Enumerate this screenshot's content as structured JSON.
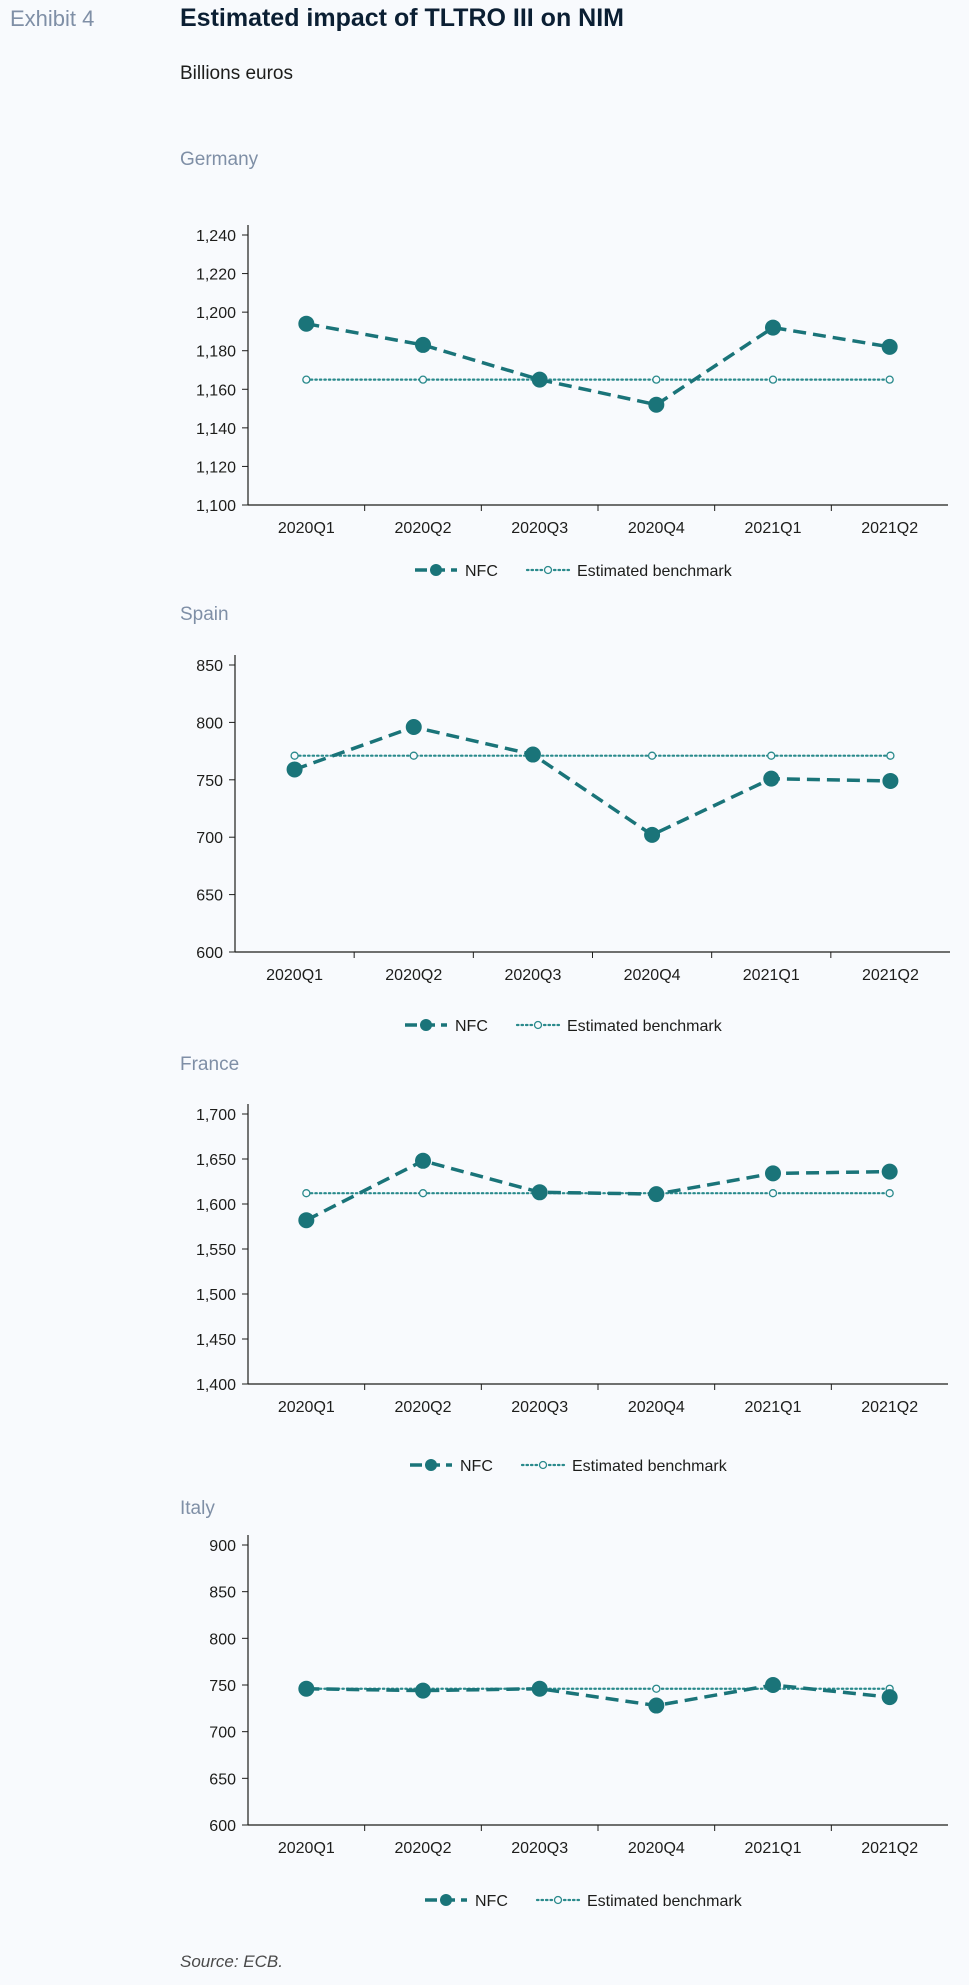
{
  "header": {
    "exhibit": "Exhibit 4",
    "title": "Estimated impact of TLTRO III on NIM",
    "subtitle": "Billions euros"
  },
  "footer": {
    "source": "Source: ECB."
  },
  "colors": {
    "nfc": "#1a7479",
    "benchmark": "#2a8a8c",
    "axis": "#1d1d1b"
  },
  "legend": {
    "nfc": "NFC",
    "benchmark": "Estimated benchmark"
  },
  "chart_data": [
    {
      "type": "line",
      "title": "Germany",
      "categories": [
        "2020Q1",
        "2020Q2",
        "2020Q3",
        "2020Q4",
        "2021Q1",
        "2021Q2"
      ],
      "series": [
        {
          "name": "NFC",
          "values": [
            1194,
            1183,
            1165,
            1152,
            1192,
            1182
          ]
        },
        {
          "name": "Estimated benchmark",
          "values": [
            1165,
            1165,
            1165,
            1165,
            1165,
            1165
          ]
        }
      ],
      "yticks": [
        "1,100",
        "1,120",
        "1,140",
        "1,160",
        "1,180",
        "1,200",
        "1,220",
        "1,240"
      ],
      "ylim": [
        1100,
        1240
      ],
      "legend_position": "bottom"
    },
    {
      "type": "line",
      "title": "Spain",
      "categories": [
        "2020Q1",
        "2020Q2",
        "2020Q3",
        "2020Q4",
        "2021Q1",
        "2021Q2"
      ],
      "series": [
        {
          "name": "NFC",
          "values": [
            759,
            796,
            772,
            702,
            751,
            749
          ]
        },
        {
          "name": "Estimated benchmark",
          "values": [
            771,
            771,
            771,
            771,
            771,
            771
          ]
        }
      ],
      "yticks": [
        "600",
        "650",
        "700",
        "750",
        "800",
        "850"
      ],
      "ylim": [
        600,
        850
      ],
      "legend_position": "bottom"
    },
    {
      "type": "line",
      "title": "France",
      "categories": [
        "2020Q1",
        "2020Q2",
        "2020Q3",
        "2020Q4",
        "2021Q1",
        "2021Q2"
      ],
      "series": [
        {
          "name": "NFC",
          "values": [
            1582,
            1648,
            1613,
            1611,
            1634,
            1636
          ]
        },
        {
          "name": "Estimated benchmark",
          "values": [
            1612,
            1612,
            1612,
            1612,
            1612,
            1612
          ]
        }
      ],
      "yticks": [
        "1,400",
        "1,450",
        "1,500",
        "1,550",
        "1,600",
        "1,650",
        "1,700"
      ],
      "ylim": [
        1400,
        1700
      ],
      "legend_position": "bottom"
    },
    {
      "type": "line",
      "title": "Italy",
      "categories": [
        "2020Q1",
        "2020Q2",
        "2020Q3",
        "2020Q4",
        "2021Q1",
        "2021Q2"
      ],
      "series": [
        {
          "name": "NFC",
          "values": [
            746,
            744,
            746,
            728,
            750,
            737
          ]
        },
        {
          "name": "Estimated benchmark",
          "values": [
            746,
            746,
            746,
            746,
            746,
            746
          ]
        }
      ],
      "yticks": [
        "600",
        "650",
        "700",
        "750",
        "800",
        "850",
        "900"
      ],
      "ylim": [
        600,
        900
      ],
      "legend_position": "bottom"
    }
  ]
}
